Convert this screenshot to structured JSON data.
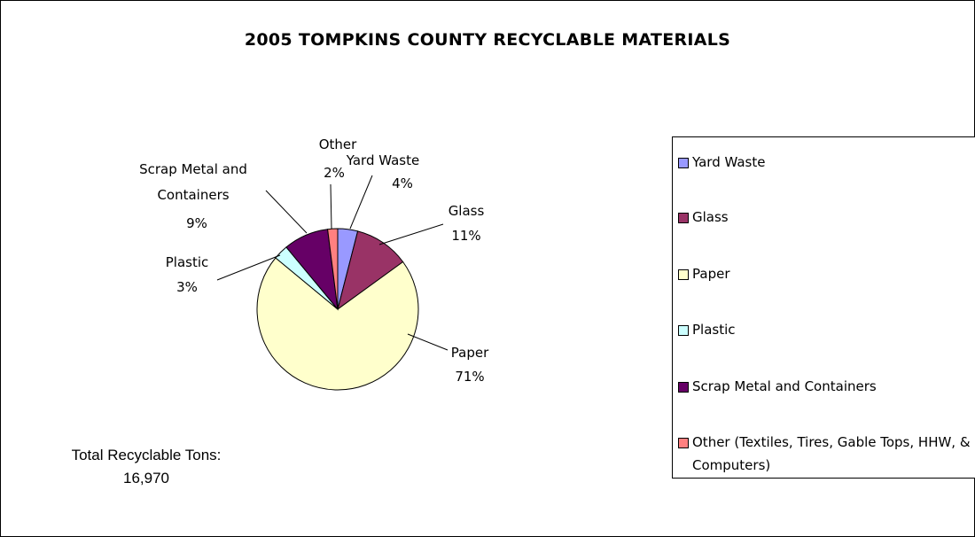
{
  "title": "2005 TOMPKINS COUNTY RECYCLABLE MATERIALS",
  "chart_data": {
    "type": "pie",
    "title": "2005 TOMPKINS COUNTY RECYCLABLE MATERIALS",
    "slices": [
      {
        "name": "Yard Waste",
        "label": "Yard Waste",
        "percent_label": "4%",
        "value": 4,
        "color": "#9999ff"
      },
      {
        "name": "Glass",
        "label": "Glass",
        "percent_label": "11%",
        "value": 11,
        "color": "#993366"
      },
      {
        "name": "Paper",
        "label": "Paper",
        "percent_label": "71%",
        "value": 71,
        "color": "#ffffcc"
      },
      {
        "name": "Plastic",
        "label": "Plastic",
        "percent_label": "3%",
        "value": 3,
        "color": "#ccffff"
      },
      {
        "name": "Scrap Metal and Containers",
        "label": "Scrap Metal and Containers",
        "percent_label": "9%",
        "value": 9,
        "color": "#660066"
      },
      {
        "name": "Other",
        "label": "Other",
        "percent_label": "2%",
        "value": 2,
        "color": "#ff8080"
      }
    ],
    "legend": [
      {
        "text": "Yard Waste",
        "color": "#9999ff"
      },
      {
        "text": "Glass",
        "color": "#993366"
      },
      {
        "text": "Paper",
        "color": "#ffffcc"
      },
      {
        "text": "Plastic",
        "color": "#ccffff"
      },
      {
        "text": "Scrap Metal and Containers",
        "color": "#660066"
      },
      {
        "text": "Other (Textiles, Tires, Gable Tops, HHW, & Computers)",
        "color": "#ff8080"
      }
    ],
    "legend_position": "right"
  },
  "total": {
    "line1": "Total Recyclable Tons:",
    "line2": "16,970"
  }
}
